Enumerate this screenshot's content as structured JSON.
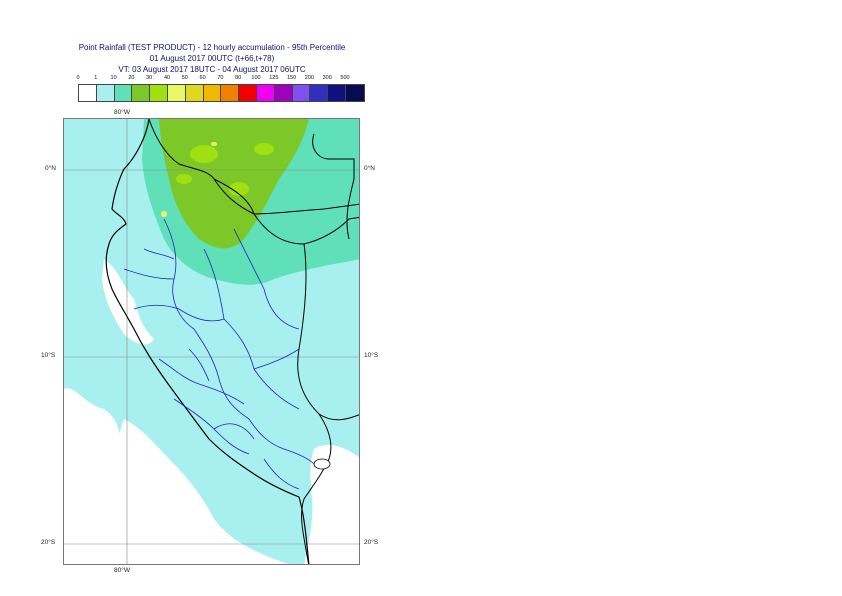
{
  "header": {
    "line1": "Point Rainfall (TEST PRODUCT) - 12 hourly accumulation - 95th Percentile",
    "line2": "01 August 2017 00UTC (t+66,t+78)",
    "line3": "VT: 03 August 2017 18UTC - 04 August 2017 06UTC"
  },
  "legend": {
    "ticks": [
      "0",
      "1",
      "10",
      "20",
      "30",
      "40",
      "50",
      "60",
      "70",
      "80",
      "100",
      "125",
      "150",
      "200",
      "300",
      "500"
    ],
    "colors": [
      "#ffffff",
      "#a8f0ef",
      "#60e0b8",
      "#7cc828",
      "#a0e010",
      "#e8f868",
      "#e0d820",
      "#f0b800",
      "#f08000",
      "#f00000",
      "#f000f0",
      "#a000c0",
      "#8050f0",
      "#3030c0",
      "#101080",
      "#0a0a50"
    ]
  },
  "map": {
    "grid_labels": {
      "top_lon": "80°W",
      "bottom_lon": "80°W",
      "lat_0": "0°N",
      "lat_0_right": "0°N",
      "lat_10": "10°S",
      "lat_10_right": "10°S",
      "lat_20": "20°S",
      "lat_20_right": "20°S"
    },
    "colors": {
      "light_cyan": "#a8f0ef",
      "teal": "#60e0b8",
      "green": "#7cc828",
      "lime": "#a0e010",
      "coast": "#000000",
      "province": "#2020c0"
    }
  }
}
